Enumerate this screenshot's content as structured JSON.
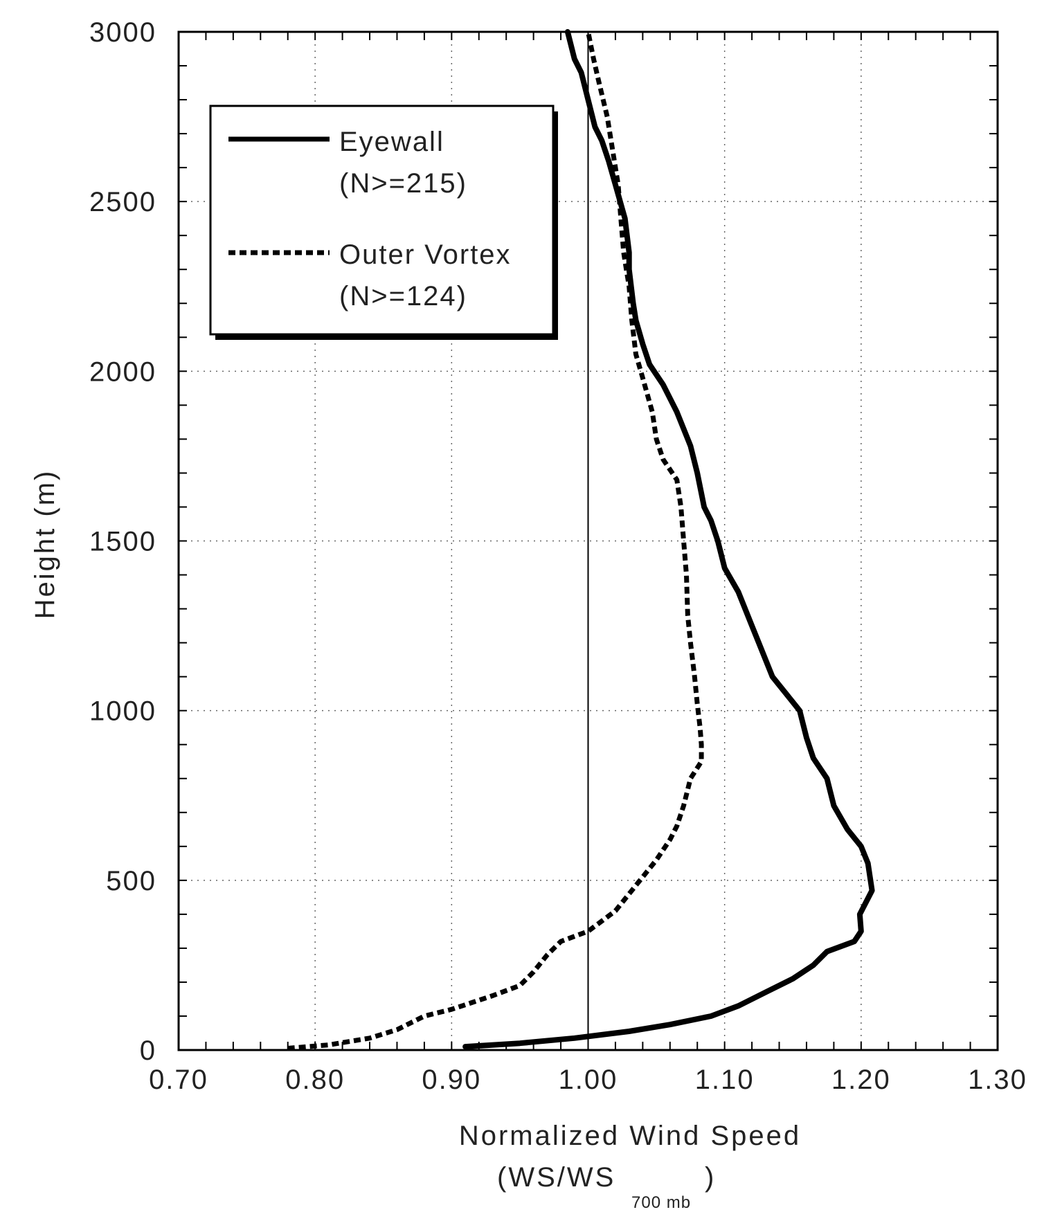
{
  "chart_data": {
    "type": "line",
    "xlabel": "Normalized Wind Speed",
    "xlabel_line2": "(WS/WS",
    "xlabel_subscript": "700 mb",
    "xlabel_close": ")",
    "ylabel": "Height (m)",
    "xlim": [
      0.7,
      1.3
    ],
    "ylim": [
      0,
      3000
    ],
    "x_ticks": [
      "0.70",
      "0.80",
      "0.90",
      "1.00",
      "1.10",
      "1.20",
      "1.30"
    ],
    "y_ticks": [
      "0",
      "500",
      "1000",
      "1500",
      "2000",
      "2500",
      "3000"
    ],
    "grid": true,
    "reference_line_x": 1.0,
    "legend_position": "top-left",
    "series": [
      {
        "name": "Eyewall",
        "note": "(N>=215)",
        "style": "solid",
        "points": [
          [
            0.91,
            10
          ],
          [
            0.95,
            20
          ],
          [
            0.99,
            35
          ],
          [
            1.03,
            55
          ],
          [
            1.06,
            75
          ],
          [
            1.09,
            100
          ],
          [
            1.11,
            130
          ],
          [
            1.13,
            170
          ],
          [
            1.15,
            210
          ],
          [
            1.165,
            250
          ],
          [
            1.175,
            290
          ],
          [
            1.195,
            320
          ],
          [
            1.2,
            350
          ],
          [
            1.199,
            400
          ],
          [
            1.208,
            470
          ],
          [
            1.205,
            550
          ],
          [
            1.2,
            600
          ],
          [
            1.19,
            650
          ],
          [
            1.18,
            720
          ],
          [
            1.175,
            800
          ],
          [
            1.165,
            860
          ],
          [
            1.16,
            920
          ],
          [
            1.155,
            1000
          ],
          [
            1.145,
            1050
          ],
          [
            1.135,
            1100
          ],
          [
            1.125,
            1200
          ],
          [
            1.12,
            1250
          ],
          [
            1.11,
            1350
          ],
          [
            1.1,
            1420
          ],
          [
            1.095,
            1500
          ],
          [
            1.09,
            1560
          ],
          [
            1.085,
            1600
          ],
          [
            1.08,
            1700
          ],
          [
            1.075,
            1780
          ],
          [
            1.065,
            1880
          ],
          [
            1.055,
            1960
          ],
          [
            1.045,
            2020
          ],
          [
            1.04,
            2080
          ],
          [
            1.035,
            2150
          ],
          [
            1.033,
            2200
          ],
          [
            1.03,
            2300
          ],
          [
            1.03,
            2350
          ],
          [
            1.027,
            2450
          ],
          [
            1.02,
            2550
          ],
          [
            1.015,
            2620
          ],
          [
            1.01,
            2680
          ],
          [
            1.005,
            2720
          ],
          [
            1.0,
            2800
          ],
          [
            0.995,
            2880
          ],
          [
            0.99,
            2920
          ],
          [
            0.985,
            3000
          ]
        ]
      },
      {
        "name": "Outer Vortex",
        "note": "(N>=124)",
        "style": "dashed",
        "points": [
          [
            0.78,
            5
          ],
          [
            0.81,
            15
          ],
          [
            0.84,
            35
          ],
          [
            0.86,
            60
          ],
          [
            0.88,
            100
          ],
          [
            0.9,
            120
          ],
          [
            0.93,
            160
          ],
          [
            0.95,
            190
          ],
          [
            0.96,
            230
          ],
          [
            0.97,
            280
          ],
          [
            0.98,
            320
          ],
          [
            1.0,
            350
          ],
          [
            1.02,
            410
          ],
          [
            1.03,
            460
          ],
          [
            1.04,
            510
          ],
          [
            1.05,
            560
          ],
          [
            1.06,
            620
          ],
          [
            1.065,
            660
          ],
          [
            1.07,
            720
          ],
          [
            1.075,
            800
          ],
          [
            1.083,
            850
          ],
          [
            1.083,
            900
          ],
          [
            1.082,
            950
          ],
          [
            1.08,
            1020
          ],
          [
            1.078,
            1100
          ],
          [
            1.075,
            1200
          ],
          [
            1.073,
            1280
          ],
          [
            1.072,
            1400
          ],
          [
            1.07,
            1500
          ],
          [
            1.068,
            1600
          ],
          [
            1.065,
            1680
          ],
          [
            1.055,
            1740
          ],
          [
            1.05,
            1800
          ],
          [
            1.047,
            1880
          ],
          [
            1.04,
            1980
          ],
          [
            1.035,
            2050
          ],
          [
            1.032,
            2150
          ],
          [
            1.03,
            2250
          ],
          [
            1.028,
            2300
          ],
          [
            1.026,
            2350
          ],
          [
            1.024,
            2450
          ],
          [
            1.022,
            2550
          ],
          [
            1.018,
            2650
          ],
          [
            1.014,
            2750
          ],
          [
            1.008,
            2850
          ],
          [
            1.004,
            2920
          ],
          [
            1.0,
            3000
          ]
        ]
      }
    ]
  }
}
